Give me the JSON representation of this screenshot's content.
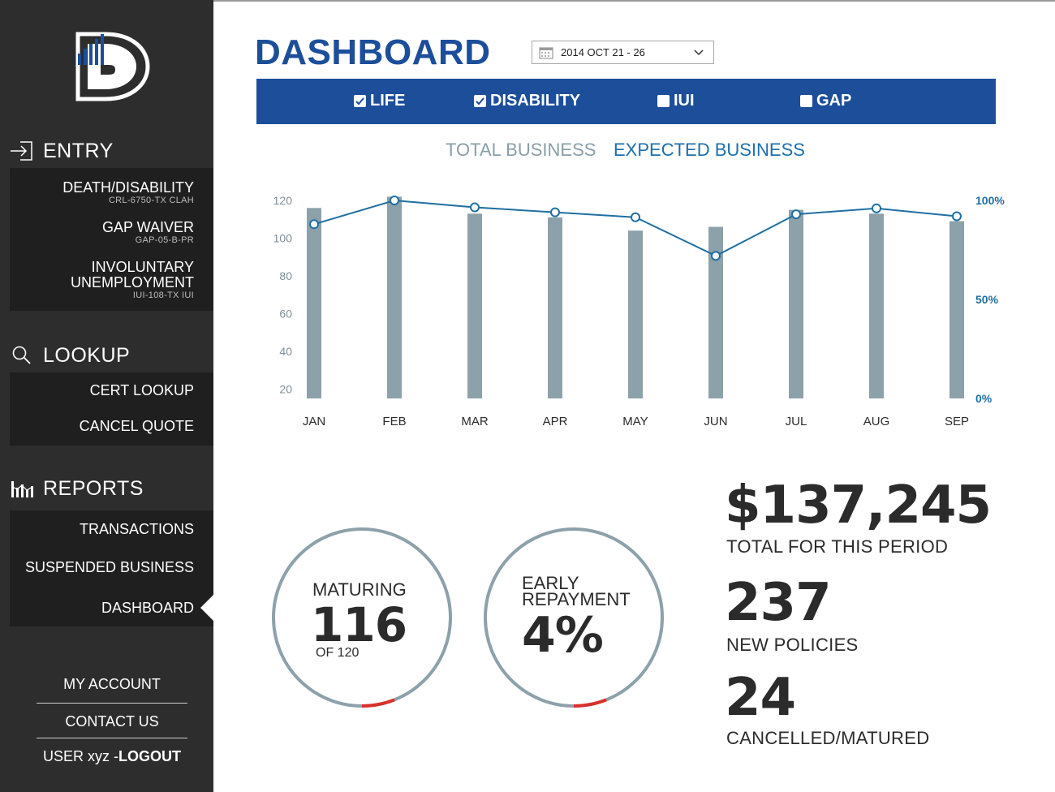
{
  "sidebar": {
    "entry": {
      "label": "ENTRY",
      "items": [
        {
          "label": "DEATH/DISABILITY",
          "code": "CRL-6750-TX CLAH"
        },
        {
          "label": "GAP WAIVER",
          "code": "GAP-05-B-PR"
        },
        {
          "label_line1": "INVOLUNTARY",
          "label_line2": "UNEMPLOYMENT",
          "code": "IUI-108-TX  IUI"
        }
      ]
    },
    "lookup": {
      "label": "LOOKUP",
      "items": [
        {
          "label": "CERT LOOKUP"
        },
        {
          "label": "CANCEL QUOTE"
        }
      ]
    },
    "reports": {
      "label": "REPORTS",
      "items": [
        {
          "label": "TRANSACTIONS"
        },
        {
          "label": "SUSPENDED BUSINESS"
        },
        {
          "label": "DASHBOARD"
        }
      ]
    },
    "footer": {
      "my_account": "MY ACCOUNT",
      "contact_us": "CONTACT US",
      "user_prefix": "USER xyz -",
      "logout": "LOGOUT"
    },
    "active_item": "DASHBOARD"
  },
  "header": {
    "title": "DASHBOARD",
    "date_range": "2014 OCT 21 - 26"
  },
  "filters": [
    {
      "label": "LIFE",
      "checked": true
    },
    {
      "label": "DISABILITY",
      "checked": true
    },
    {
      "label": "IUI",
      "checked": false
    },
    {
      "label": "GAP",
      "checked": false
    }
  ],
  "chart_tabs": {
    "total": "TOTAL BUSINESS",
    "expected": "EXPECTED BUSINESS"
  },
  "chart_data": {
    "type": "bar",
    "categories": [
      "JAN",
      "FEB",
      "MAR",
      "APR",
      "MAY",
      "JUN",
      "JUL",
      "AUG",
      "SEP"
    ],
    "series": [
      {
        "type": "bar",
        "values": [
          116,
          122,
          113,
          111,
          104,
          106,
          115,
          113,
          109
        ]
      },
      {
        "type": "line",
        "values": [
          88,
          100,
          96.5,
          94,
          91.5,
          72,
          93,
          96,
          92
        ]
      }
    ],
    "y_ticks": [
      20,
      40,
      60,
      80,
      100,
      120
    ],
    "y2_ticks": [
      "100%",
      "50%",
      "0%"
    ],
    "ylim": [
      15,
      120
    ],
    "y2lim": [
      0,
      100
    ],
    "grid": false,
    "colors": {
      "bar": "#8da1aa",
      "line": "#1f6fa3"
    }
  },
  "stats": {
    "maturing": {
      "label": "MATURING",
      "value": "116",
      "sub": "OF 120"
    },
    "early_repayment": {
      "label_line1": "EARLY",
      "label_line2": "REPAYMENT",
      "value": "4%"
    },
    "total_amount": {
      "value": "$137,245",
      "label": "TOTAL FOR THIS PERIOD"
    },
    "new_policies": {
      "value": "237",
      "label": "NEW POLICIES"
    },
    "cancelled": {
      "value": "24",
      "label": "CANCELLED/MATURED"
    }
  },
  "colors": {
    "brand_blue": "#1c4e9a",
    "sidebar_bg": "#2d2d2d",
    "tab_inactive": "#8a9ea8",
    "tab_active": "#1c6fae",
    "ring": "#8da1aa",
    "ring_accent": "#d9312b"
  }
}
